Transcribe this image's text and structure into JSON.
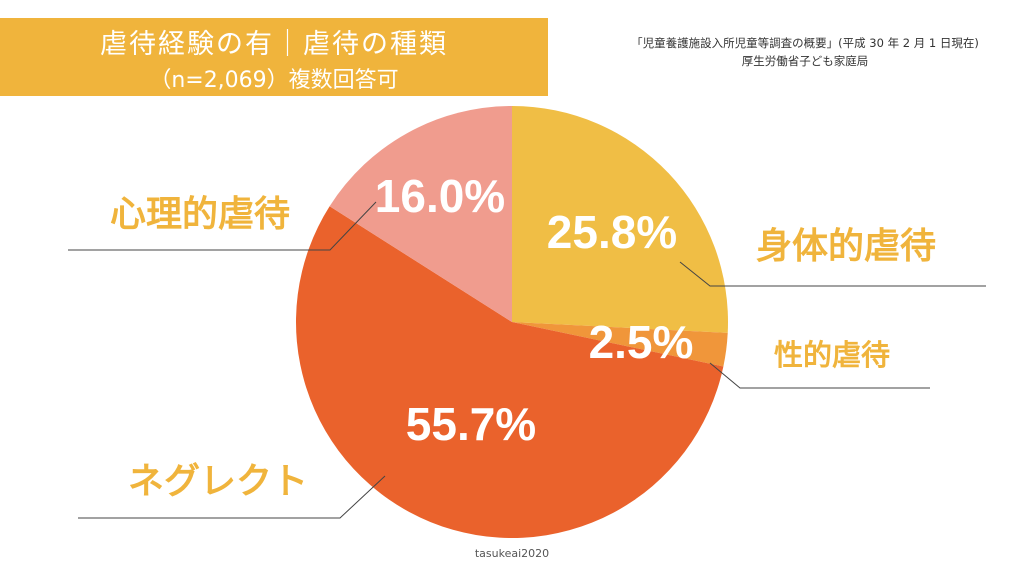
{
  "header": {
    "title": "虐待経験の有｜虐待の種類",
    "subtitle": "（n=2,069）複数回答可"
  },
  "source": {
    "line1": "「児童養護施設入所児童等調査の概要」(平成 30 年 2 月 1 日現在)",
    "line2": "厚生労働省子ども家庭局"
  },
  "credit": "tasukeai2020",
  "chart_data": {
    "type": "pie",
    "start_angle_deg": 0,
    "direction": "clockwise",
    "slices": [
      {
        "label": "身体的虐待",
        "value": 25.8,
        "value_label": "25.8%",
        "color": "#F0BE45"
      },
      {
        "label": "性的虐待",
        "value": 2.5,
        "value_label": "2.5%",
        "color": "#F0963A"
      },
      {
        "label": "ネグレクト",
        "value": 55.7,
        "value_label": "55.7%",
        "color": "#EA622C"
      },
      {
        "label": "心理的虐待",
        "value": 16.0,
        "value_label": "16.0%",
        "color": "#F09C8E"
      }
    ],
    "label_color": "#F0B43C"
  }
}
